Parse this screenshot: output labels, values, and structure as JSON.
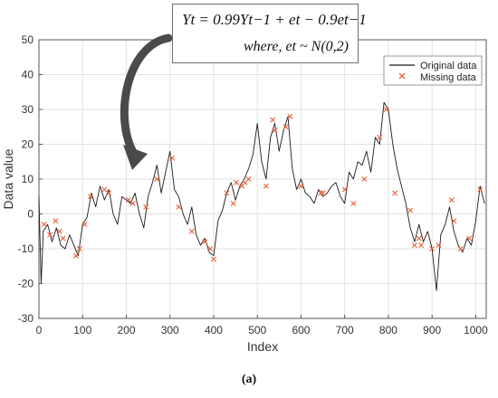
{
  "chart_data": {
    "type": "line",
    "title": "",
    "xlabel": "Index",
    "ylabel": "Data value",
    "xlim": [
      0,
      1024
    ],
    "ylim": [
      -30,
      50
    ],
    "x_ticks": [
      0,
      100,
      200,
      300,
      400,
      500,
      600,
      700,
      800,
      900,
      1000
    ],
    "x_tick_labels": [
      "0",
      "100",
      "200",
      "300",
      "400",
      "500",
      "600",
      "700",
      "800",
      "900",
      "1000"
    ],
    "y_ticks": [
      -30,
      -20,
      -10,
      0,
      10,
      20,
      30,
      40,
      50
    ],
    "y_tick_labels": [
      "-30",
      "-20",
      "-10",
      "0",
      "10",
      "20",
      "30",
      "40",
      "50"
    ],
    "grid": true,
    "legend_position": "top-right",
    "equation": {
      "line1": "Yt = 0.99Yt−1 + et − 0.9et−1",
      "line2": "where, et ~ N(0,2)"
    },
    "caption": "(a)",
    "series": [
      {
        "name": "Original data",
        "style": "line",
        "color": "#1a1a1a",
        "x": [
          0,
          5,
          10,
          20,
          30,
          40,
          50,
          60,
          70,
          80,
          90,
          100,
          110,
          120,
          130,
          140,
          150,
          160,
          170,
          180,
          190,
          200,
          210,
          220,
          230,
          240,
          250,
          260,
          270,
          280,
          290,
          300,
          310,
          320,
          330,
          340,
          350,
          360,
          370,
          380,
          390,
          400,
          410,
          420,
          430,
          440,
          450,
          460,
          470,
          480,
          490,
          500,
          510,
          520,
          530,
          540,
          550,
          560,
          570,
          580,
          590,
          600,
          610,
          620,
          630,
          640,
          650,
          660,
          670,
          680,
          690,
          700,
          710,
          720,
          730,
          740,
          750,
          760,
          770,
          780,
          790,
          800,
          810,
          820,
          830,
          840,
          850,
          860,
          870,
          880,
          890,
          900,
          910,
          920,
          930,
          940,
          950,
          960,
          970,
          980,
          990,
          1000,
          1010,
          1020
        ],
        "y": [
          5,
          -20,
          -5,
          -3,
          -8,
          -4,
          -9,
          -10,
          -6,
          -9,
          -12,
          -3,
          -1,
          6,
          2,
          8,
          4,
          7,
          0,
          -3,
          5,
          4,
          3,
          6,
          0,
          -4,
          5,
          9,
          14,
          6,
          12,
          18,
          7,
          5,
          0,
          -3,
          2,
          -6,
          -9,
          -7,
          -11,
          -12,
          -2,
          1,
          6,
          9,
          4,
          8,
          10,
          13,
          17,
          26,
          15,
          10,
          22,
          26,
          18,
          24,
          28,
          13,
          7,
          10,
          6,
          5,
          3,
          7,
          5,
          6,
          8,
          9,
          5,
          3,
          12,
          10,
          15,
          14,
          18,
          12,
          22,
          20,
          32,
          30,
          20,
          13,
          8,
          3,
          -4,
          -8,
          -3,
          -8,
          -5,
          -10,
          -22,
          -6,
          -3,
          2,
          -5,
          -9,
          -11,
          -7,
          -9,
          -2,
          8,
          3
        ]
      },
      {
        "name": "Missing data",
        "style": "marker",
        "marker": "x",
        "color": "#e8633c",
        "x": [
          12,
          25,
          38,
          47,
          55,
          85,
          93,
          105,
          118,
          150,
          160,
          205,
          215,
          245,
          270,
          305,
          320,
          350,
          380,
          392,
          400,
          430,
          445,
          452,
          465,
          472,
          480,
          520,
          535,
          540,
          565,
          575,
          600,
          645,
          650,
          700,
          720,
          745,
          780,
          795,
          815,
          850,
          860,
          870,
          875,
          900,
          915,
          945,
          950,
          965,
          985,
          1010
        ],
        "y": [
          -3,
          -6,
          -2,
          -5,
          -7,
          -12,
          -10,
          -3,
          5,
          7,
          6,
          4,
          3,
          2,
          10,
          16,
          2,
          -5,
          -8,
          -10,
          -13,
          6,
          3,
          9,
          8,
          9,
          10,
          8,
          27,
          24,
          25,
          28,
          8,
          6,
          6,
          7,
          3,
          10,
          22,
          30,
          6,
          1,
          -9,
          -7,
          -9,
          -10,
          -9,
          4,
          -2,
          -10,
          -7,
          7
        ]
      }
    ]
  }
}
